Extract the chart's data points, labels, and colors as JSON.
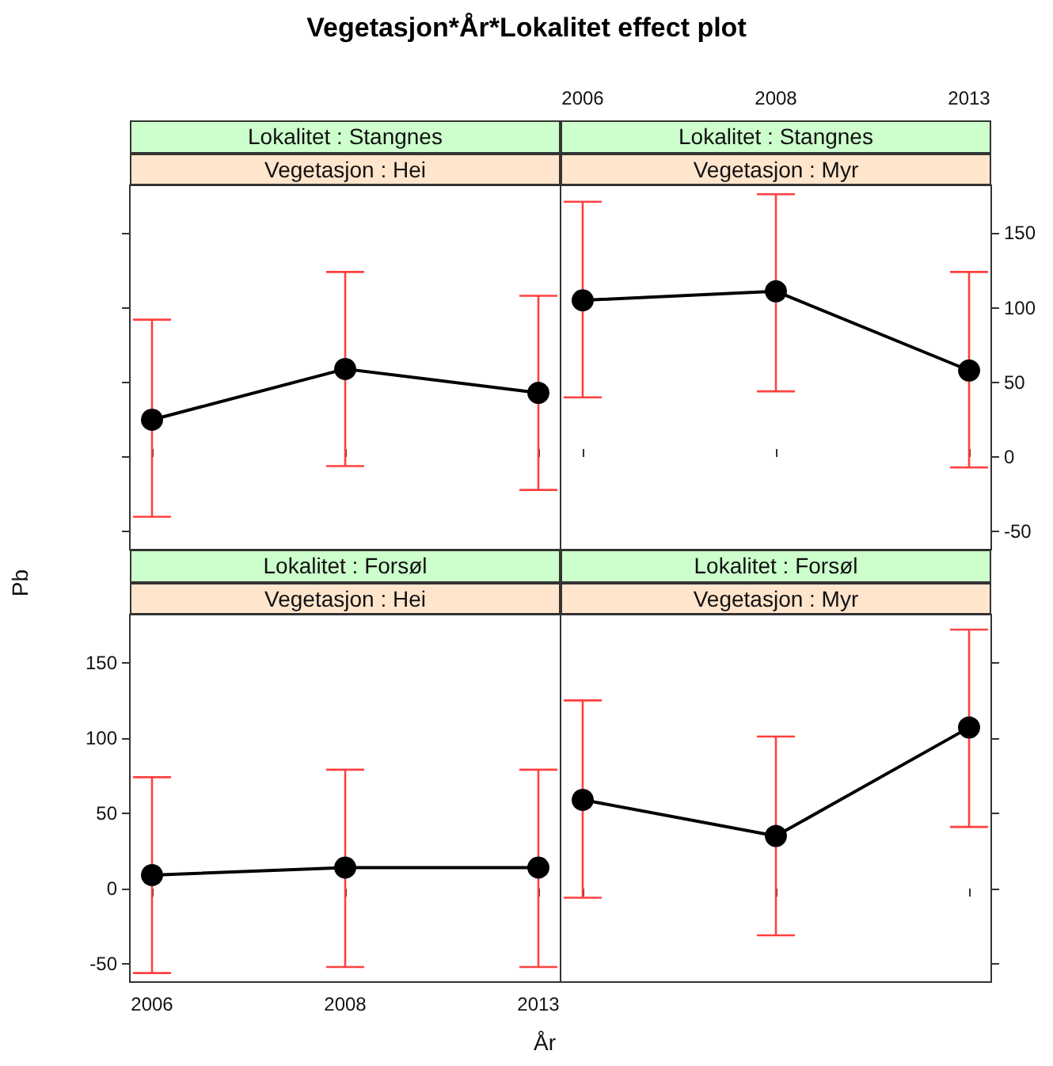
{
  "chart_data": [
    {
      "type": "line",
      "title": "Lokalitet : Stangnes",
      "subtitle": "Vegetasjon : Hei",
      "annotations": [
        "Vegetasjon*År*Lokalitet effect plot"
      ],
      "categories": [
        "2006",
        "2008",
        "2013"
      ],
      "series": [
        {
          "color": "#000000",
          "values": [
            25,
            59,
            43
          ],
          "errors": [
            [
              -40,
              92
            ],
            [
              -6,
              124
            ],
            [
              -22,
              108
            ]
          ]
        }
      ],
      "ylim": [
        -62,
        182
      ],
      "yticks": [
        -50,
        0,
        50,
        100,
        150
      ],
      "marker": "circle",
      "line_style": "solid",
      "tick_labels": false
    },
    {
      "type": "line",
      "title": "Lokalitet : Stangnes",
      "subtitle": "Vegetasjon : Myr",
      "categories": [
        "2006",
        "2008",
        "2013"
      ],
      "series": [
        {
          "color": "#000000",
          "values": [
            105,
            111,
            58
          ],
          "errors": [
            [
              40,
              171
            ],
            [
              44,
              176
            ],
            [
              -7,
              124
            ]
          ]
        }
      ],
      "ylim": [
        -62,
        182
      ],
      "yticks": [
        -50,
        0,
        50,
        100,
        150
      ],
      "marker": "circle",
      "line_style": "solid"
    },
    {
      "type": "line",
      "title": "Lokalitet : Forsøl",
      "subtitle": "Vegetasjon : Hei",
      "xlabel": "År",
      "ylabel": "Pb",
      "categories": [
        "2006",
        "2008",
        "2013"
      ],
      "series": [
        {
          "color": "#000000",
          "values": [
            9,
            14,
            14
          ],
          "errors": [
            [
              -56,
              74
            ],
            [
              -52,
              79
            ],
            [
              -52,
              79
            ]
          ]
        }
      ],
      "ylim": [
        -62,
        182
      ],
      "yticks": [
        -50,
        0,
        50,
        100,
        150
      ],
      "marker": "circle",
      "line_style": "solid"
    },
    {
      "type": "line",
      "title": "Lokalitet : Forsøl",
      "subtitle": "Vegetasjon : Myr",
      "categories": [
        "2006",
        "2008",
        "2013"
      ],
      "series": [
        {
          "color": "#000000",
          "values": [
            59,
            35,
            107
          ],
          "errors": [
            [
              -6,
              125
            ],
            [
              -31,
              101
            ],
            [
              41,
              172
            ]
          ]
        }
      ],
      "ylim": [
        -62,
        182
      ],
      "yticks": [
        -50,
        0,
        50,
        100,
        150
      ],
      "marker": "circle",
      "line_style": "solid",
      "tick_labels": false
    }
  ]
}
